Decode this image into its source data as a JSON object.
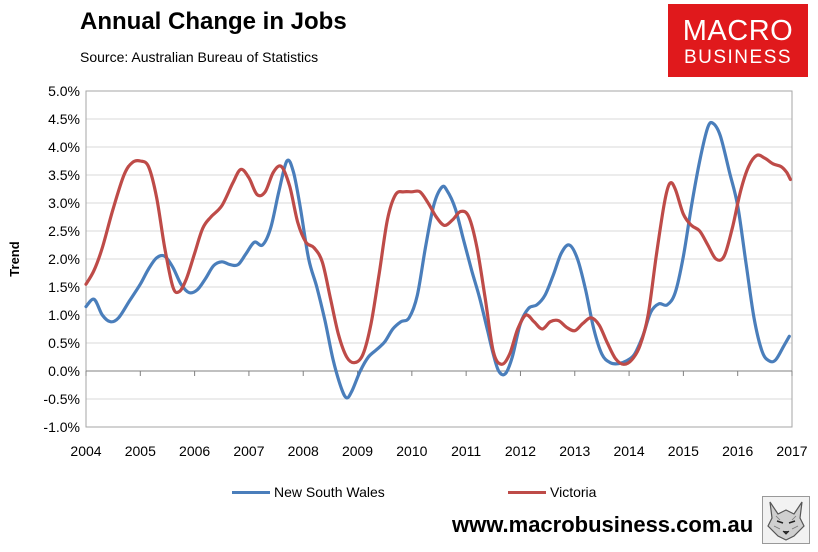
{
  "header": {
    "title": "Annual Change in Jobs",
    "source": "Source: Australian Bureau of Statistics"
  },
  "logo": {
    "line1": "MACRO",
    "line2": "BUSINESS"
  },
  "footer": {
    "website": "www.macrobusiness.com.au"
  },
  "colors": {
    "nsw": "#4a7ebb",
    "vic": "#be4b48",
    "grid": "#d9d9d9",
    "brand": "#e0191c"
  },
  "icons": {
    "mascot": "wolf-icon"
  },
  "chart_data": {
    "type": "line",
    "ylabel": "Trend",
    "xlabel": "",
    "xlim": [
      2004,
      2017
    ],
    "ylim": [
      -1.0,
      5.0
    ],
    "y_ticks": [
      "-1.0%",
      "-0.5%",
      "0.0%",
      "0.5%",
      "1.0%",
      "1.5%",
      "2.0%",
      "2.5%",
      "3.0%",
      "3.5%",
      "4.0%",
      "4.5%",
      "5.0%"
    ],
    "x_ticks": [
      "2004",
      "2005",
      "2006",
      "2007",
      "2008",
      "2009",
      "2010",
      "2011",
      "2012",
      "2013",
      "2014",
      "2015",
      "2016",
      "2017"
    ],
    "grid": true,
    "legend_position": "bottom",
    "series": [
      {
        "name": "New South Wales",
        "color": "#4a7ebb",
        "points": [
          [
            2004.0,
            1.15
          ],
          [
            2004.15,
            1.28
          ],
          [
            2004.3,
            1.0
          ],
          [
            2004.45,
            0.88
          ],
          [
            2004.6,
            0.95
          ],
          [
            2004.8,
            1.25
          ],
          [
            2005.0,
            1.55
          ],
          [
            2005.15,
            1.82
          ],
          [
            2005.3,
            2.02
          ],
          [
            2005.45,
            2.05
          ],
          [
            2005.6,
            1.85
          ],
          [
            2005.75,
            1.55
          ],
          [
            2005.9,
            1.4
          ],
          [
            2006.05,
            1.45
          ],
          [
            2006.2,
            1.65
          ],
          [
            2006.35,
            1.88
          ],
          [
            2006.5,
            1.95
          ],
          [
            2006.65,
            1.9
          ],
          [
            2006.8,
            1.9
          ],
          [
            2006.95,
            2.1
          ],
          [
            2007.1,
            2.3
          ],
          [
            2007.25,
            2.25
          ],
          [
            2007.4,
            2.55
          ],
          [
            2007.55,
            3.2
          ],
          [
            2007.7,
            3.75
          ],
          [
            2007.82,
            3.55
          ],
          [
            2007.95,
            2.9
          ],
          [
            2008.1,
            2.0
          ],
          [
            2008.25,
            1.5
          ],
          [
            2008.4,
            0.9
          ],
          [
            2008.55,
            0.2
          ],
          [
            2008.7,
            -0.3
          ],
          [
            2008.8,
            -0.48
          ],
          [
            2008.9,
            -0.35
          ],
          [
            2009.05,
            0.0
          ],
          [
            2009.2,
            0.25
          ],
          [
            2009.35,
            0.38
          ],
          [
            2009.5,
            0.52
          ],
          [
            2009.65,
            0.75
          ],
          [
            2009.8,
            0.88
          ],
          [
            2009.95,
            0.95
          ],
          [
            2010.1,
            1.35
          ],
          [
            2010.25,
            2.2
          ],
          [
            2010.4,
            2.95
          ],
          [
            2010.55,
            3.28
          ],
          [
            2010.65,
            3.22
          ],
          [
            2010.8,
            2.9
          ],
          [
            2010.95,
            2.35
          ],
          [
            2011.1,
            1.8
          ],
          [
            2011.25,
            1.3
          ],
          [
            2011.4,
            0.7
          ],
          [
            2011.5,
            0.3
          ],
          [
            2011.6,
            0.0
          ],
          [
            2011.72,
            -0.05
          ],
          [
            2011.85,
            0.25
          ],
          [
            2012.0,
            0.85
          ],
          [
            2012.15,
            1.12
          ],
          [
            2012.3,
            1.18
          ],
          [
            2012.45,
            1.35
          ],
          [
            2012.6,
            1.7
          ],
          [
            2012.75,
            2.1
          ],
          [
            2012.9,
            2.25
          ],
          [
            2013.05,
            2.0
          ],
          [
            2013.2,
            1.45
          ],
          [
            2013.35,
            0.75
          ],
          [
            2013.5,
            0.3
          ],
          [
            2013.65,
            0.15
          ],
          [
            2013.8,
            0.13
          ],
          [
            2013.95,
            0.18
          ],
          [
            2014.1,
            0.3
          ],
          [
            2014.25,
            0.62
          ],
          [
            2014.4,
            1.05
          ],
          [
            2014.55,
            1.2
          ],
          [
            2014.7,
            1.18
          ],
          [
            2014.85,
            1.4
          ],
          [
            2015.0,
            2.05
          ],
          [
            2015.15,
            2.95
          ],
          [
            2015.3,
            3.75
          ],
          [
            2015.45,
            4.35
          ],
          [
            2015.55,
            4.42
          ],
          [
            2015.68,
            4.2
          ],
          [
            2015.85,
            3.55
          ],
          [
            2016.0,
            2.95
          ],
          [
            2016.15,
            1.95
          ],
          [
            2016.3,
            0.95
          ],
          [
            2016.45,
            0.35
          ],
          [
            2016.58,
            0.18
          ],
          [
            2016.7,
            0.2
          ],
          [
            2016.85,
            0.45
          ],
          [
            2016.95,
            0.62
          ]
        ]
      },
      {
        "name": "Victoria",
        "color": "#be4b48",
        "points": [
          [
            2004.0,
            1.55
          ],
          [
            2004.15,
            1.8
          ],
          [
            2004.3,
            2.2
          ],
          [
            2004.5,
            2.9
          ],
          [
            2004.7,
            3.5
          ],
          [
            2004.85,
            3.72
          ],
          [
            2005.0,
            3.75
          ],
          [
            2005.15,
            3.65
          ],
          [
            2005.3,
            3.1
          ],
          [
            2005.45,
            2.2
          ],
          [
            2005.6,
            1.5
          ],
          [
            2005.72,
            1.42
          ],
          [
            2005.85,
            1.65
          ],
          [
            2006.0,
            2.1
          ],
          [
            2006.15,
            2.55
          ],
          [
            2006.3,
            2.75
          ],
          [
            2006.5,
            2.95
          ],
          [
            2006.7,
            3.35
          ],
          [
            2006.85,
            3.6
          ],
          [
            2007.0,
            3.45
          ],
          [
            2007.15,
            3.15
          ],
          [
            2007.3,
            3.2
          ],
          [
            2007.45,
            3.55
          ],
          [
            2007.6,
            3.65
          ],
          [
            2007.75,
            3.3
          ],
          [
            2007.9,
            2.65
          ],
          [
            2008.05,
            2.3
          ],
          [
            2008.2,
            2.2
          ],
          [
            2008.35,
            1.95
          ],
          [
            2008.5,
            1.3
          ],
          [
            2008.65,
            0.65
          ],
          [
            2008.8,
            0.25
          ],
          [
            2008.95,
            0.15
          ],
          [
            2009.1,
            0.3
          ],
          [
            2009.25,
            0.85
          ],
          [
            2009.4,
            1.75
          ],
          [
            2009.55,
            2.7
          ],
          [
            2009.7,
            3.15
          ],
          [
            2009.85,
            3.2
          ],
          [
            2010.0,
            3.2
          ],
          [
            2010.15,
            3.2
          ],
          [
            2010.3,
            3.0
          ],
          [
            2010.45,
            2.75
          ],
          [
            2010.6,
            2.6
          ],
          [
            2010.75,
            2.7
          ],
          [
            2010.9,
            2.85
          ],
          [
            2011.05,
            2.75
          ],
          [
            2011.2,
            2.2
          ],
          [
            2011.35,
            1.3
          ],
          [
            2011.5,
            0.35
          ],
          [
            2011.65,
            0.12
          ],
          [
            2011.8,
            0.3
          ],
          [
            2011.95,
            0.75
          ],
          [
            2012.1,
            1.0
          ],
          [
            2012.25,
            0.88
          ],
          [
            2012.4,
            0.75
          ],
          [
            2012.55,
            0.88
          ],
          [
            2012.7,
            0.9
          ],
          [
            2012.85,
            0.78
          ],
          [
            2013.0,
            0.72
          ],
          [
            2013.15,
            0.85
          ],
          [
            2013.3,
            0.95
          ],
          [
            2013.45,
            0.82
          ],
          [
            2013.6,
            0.5
          ],
          [
            2013.75,
            0.22
          ],
          [
            2013.9,
            0.12
          ],
          [
            2014.05,
            0.2
          ],
          [
            2014.2,
            0.45
          ],
          [
            2014.35,
            1.0
          ],
          [
            2014.5,
            2.05
          ],
          [
            2014.65,
            3.0
          ],
          [
            2014.75,
            3.35
          ],
          [
            2014.85,
            3.25
          ],
          [
            2015.0,
            2.8
          ],
          [
            2015.15,
            2.6
          ],
          [
            2015.3,
            2.5
          ],
          [
            2015.45,
            2.25
          ],
          [
            2015.6,
            2.0
          ],
          [
            2015.75,
            2.05
          ],
          [
            2015.9,
            2.55
          ],
          [
            2016.05,
            3.2
          ],
          [
            2016.2,
            3.65
          ],
          [
            2016.35,
            3.85
          ],
          [
            2016.5,
            3.8
          ],
          [
            2016.65,
            3.7
          ],
          [
            2016.8,
            3.65
          ],
          [
            2016.9,
            3.55
          ],
          [
            2016.97,
            3.42
          ]
        ]
      }
    ]
  }
}
